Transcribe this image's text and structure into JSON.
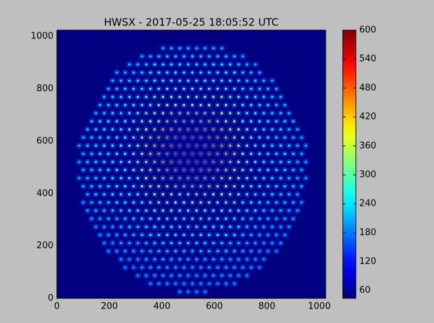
{
  "chart_data": {
    "type": "heatmap",
    "title": "HWSX - 2017-05-25 18:05:52 UTC",
    "xlim": [
      0,
      1024
    ],
    "ylim": [
      0,
      1024
    ],
    "xticks": [
      0,
      200,
      400,
      600,
      800,
      1000
    ],
    "yticks": [
      0,
      200,
      400,
      600,
      800,
      1000
    ],
    "colormap": "jet",
    "clim": [
      44,
      600
    ],
    "cticks": [
      60,
      120,
      180,
      240,
      300,
      360,
      420,
      480,
      540,
      600
    ]
  }
}
